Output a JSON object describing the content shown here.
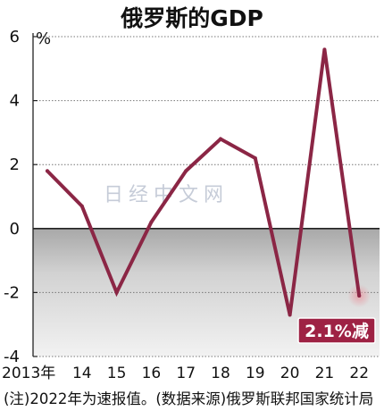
{
  "chart_data": {
    "type": "line",
    "title": "俄罗斯的GDP",
    "unit": "%",
    "x": [
      "2013年",
      "14",
      "15",
      "16",
      "17",
      "18",
      "19",
      "20",
      "21",
      "22"
    ],
    "series": [
      {
        "values": [
          1.8,
          0.7,
          -2.0,
          0.2,
          1.8,
          2.8,
          2.2,
          -2.7,
          5.6,
          -2.1
        ]
      }
    ],
    "ylim": [
      -4,
      6
    ],
    "yticks": [
      6,
      4,
      2,
      0,
      -2,
      -4
    ],
    "ytick_labels": [
      "6",
      "4",
      "2",
      "0",
      "-2",
      "-4"
    ],
    "annotation": "2.1%减",
    "note": "(注)2022年为速报值。(数据来源)俄罗斯联邦国家统计局",
    "watermark": "日经中文网",
    "line_color": "#8b2645",
    "annotation_bg": "#9e2244"
  }
}
